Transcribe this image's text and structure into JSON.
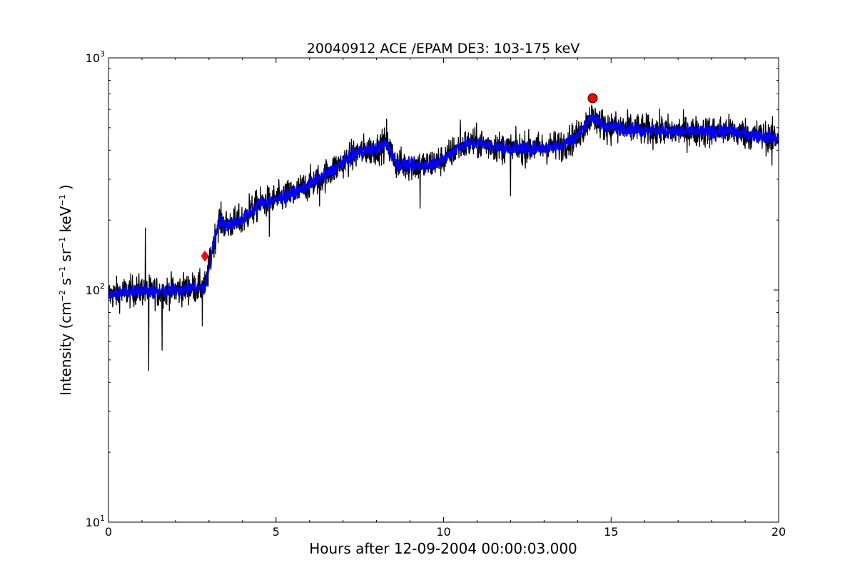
{
  "chart_data": {
    "type": "line",
    "title": "20040912 ACE /EPAM DE3: 103-175 keV",
    "xlabel": "Hours after 12-09-2004 00:00:03.000",
    "ylabel": {
      "prefix": "Intensity (cm",
      "exp1": "−2",
      "s": " s",
      "exp2": "−1",
      "sr": " sr",
      "exp3": "−1",
      "kev": " keV",
      "exp4": "−1",
      "suffix": " )"
    },
    "xlim": [
      0,
      20
    ],
    "ylim": [
      10,
      1000
    ],
    "yscale": "log",
    "grid": false,
    "x_ticks": [
      {
        "value": 0,
        "label": "0"
      },
      {
        "value": 5,
        "label": "5"
      },
      {
        "value": 10,
        "label": "10"
      },
      {
        "value": 15,
        "label": "15"
      },
      {
        "value": 20,
        "label": "20"
      }
    ],
    "y_ticks": [
      {
        "value": 10,
        "base": "10",
        "exp": "1"
      },
      {
        "value": 100,
        "base": "10",
        "exp": "2"
      },
      {
        "value": 1000,
        "base": "10",
        "exp": "3"
      }
    ],
    "series": [
      {
        "role": "raw",
        "color": "#000000",
        "noise": 0.11,
        "points": [
          [
            0,
            95
          ],
          [
            0.5,
            98
          ],
          [
            1.0,
            100
          ],
          [
            1.5,
            98
          ],
          [
            2.0,
            100
          ],
          [
            2.5,
            102
          ],
          [
            2.9,
            103
          ],
          [
            3.1,
            150
          ],
          [
            3.3,
            200
          ],
          [
            3.5,
            190
          ],
          [
            4.0,
            200
          ],
          [
            4.5,
            235
          ],
          [
            5.0,
            245
          ],
          [
            5.5,
            260
          ],
          [
            6.0,
            285
          ],
          [
            6.5,
            315
          ],
          [
            7.0,
            355
          ],
          [
            7.5,
            395
          ],
          [
            8.0,
            405
          ],
          [
            8.3,
            430
          ],
          [
            8.6,
            350
          ],
          [
            9.0,
            345
          ],
          [
            9.5,
            345
          ],
          [
            10.0,
            365
          ],
          [
            10.5,
            420
          ],
          [
            11.0,
            430
          ],
          [
            12.0,
            405
          ],
          [
            13.0,
            410
          ],
          [
            13.5,
            420
          ],
          [
            14.0,
            460
          ],
          [
            14.4,
            560
          ],
          [
            14.8,
            510
          ],
          [
            15.5,
            495
          ],
          [
            16.5,
            485
          ],
          [
            17.5,
            480
          ],
          [
            18.5,
            485
          ],
          [
            19.5,
            460
          ],
          [
            20.0,
            450
          ]
        ],
        "spikes": [
          [
            1.1,
            185
          ],
          [
            1.2,
            45
          ],
          [
            1.6,
            55
          ],
          [
            2.8,
            70
          ],
          [
            4.2,
            260
          ],
          [
            4.8,
            170
          ],
          [
            6.3,
            230
          ],
          [
            8.3,
            545
          ],
          [
            9.3,
            225
          ],
          [
            10.5,
            540
          ],
          [
            12.0,
            255
          ],
          [
            15.2,
            430
          ],
          [
            19.8,
            345
          ]
        ]
      },
      {
        "role": "smoothed",
        "color": "#0000ff",
        "noise": 0.045,
        "points": [
          [
            0,
            95
          ],
          [
            0.5,
            98
          ],
          [
            1.0,
            100
          ],
          [
            1.5,
            98
          ],
          [
            2.0,
            100
          ],
          [
            2.5,
            102
          ],
          [
            2.9,
            103
          ],
          [
            3.1,
            150
          ],
          [
            3.3,
            200
          ],
          [
            3.5,
            190
          ],
          [
            4.0,
            200
          ],
          [
            4.5,
            235
          ],
          [
            5.0,
            245
          ],
          [
            5.5,
            260
          ],
          [
            6.0,
            285
          ],
          [
            6.5,
            315
          ],
          [
            7.0,
            355
          ],
          [
            7.5,
            395
          ],
          [
            8.0,
            405
          ],
          [
            8.3,
            430
          ],
          [
            8.6,
            350
          ],
          [
            9.0,
            345
          ],
          [
            9.5,
            345
          ],
          [
            10.0,
            365
          ],
          [
            10.5,
            420
          ],
          [
            11.0,
            430
          ],
          [
            12.0,
            405
          ],
          [
            13.0,
            410
          ],
          [
            13.5,
            420
          ],
          [
            14.0,
            460
          ],
          [
            14.4,
            560
          ],
          [
            14.8,
            510
          ],
          [
            15.5,
            495
          ],
          [
            16.5,
            485
          ],
          [
            17.5,
            480
          ],
          [
            18.5,
            485
          ],
          [
            19.5,
            460
          ],
          [
            20.0,
            450
          ]
        ]
      }
    ],
    "markers": [
      {
        "shape": "diamond",
        "x": 2.88,
        "y": 140,
        "color": "#ff0000"
      },
      {
        "shape": "circle",
        "x": 14.45,
        "y": 670,
        "color": "#ff0000"
      }
    ]
  }
}
